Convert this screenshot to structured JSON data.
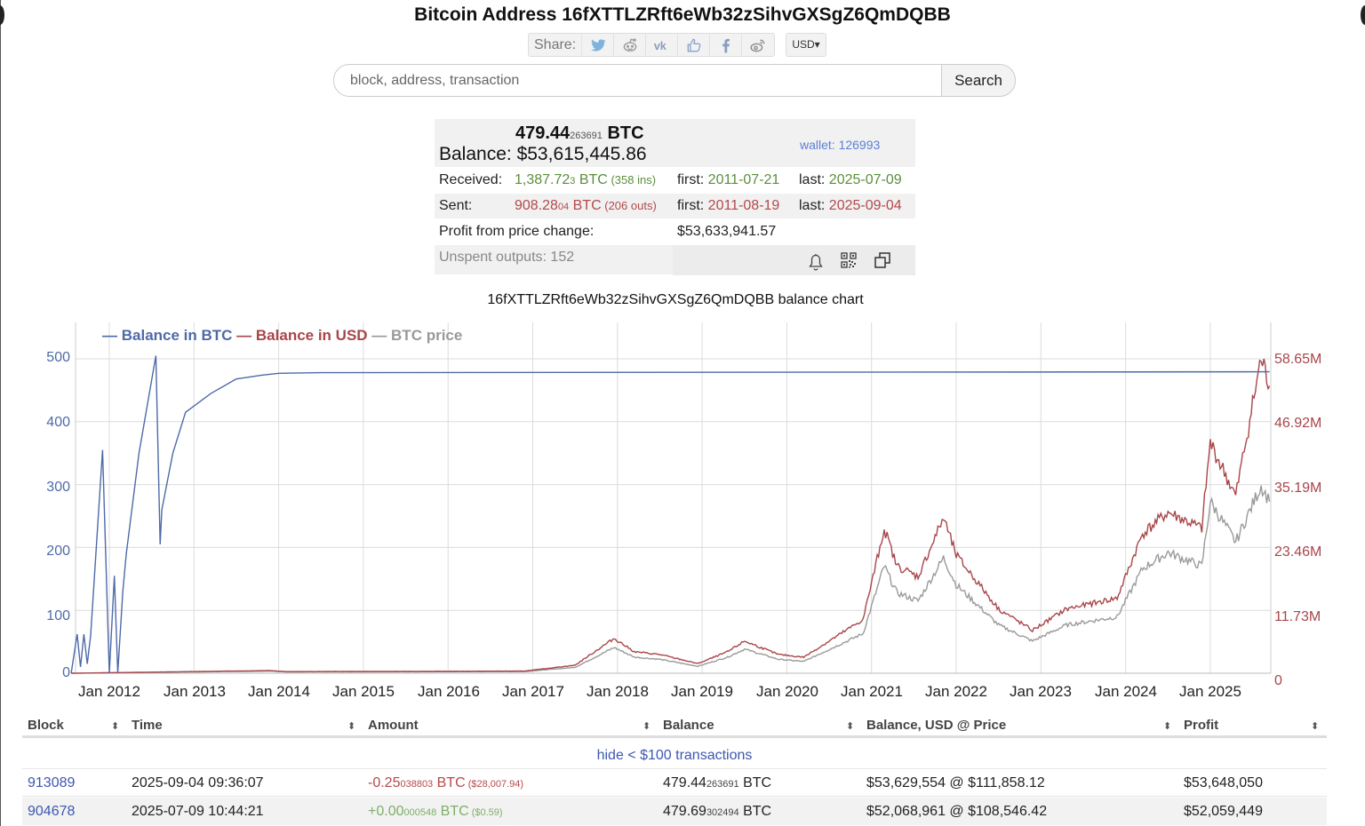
{
  "header": {
    "title": "Bitcoin Address 16fXTTLZRft6eWb32zSihvGXSgZ6QmDQBB",
    "share_label": "Share:",
    "share_icons": [
      "twitter-icon",
      "reddit-icon",
      "vk-icon",
      "like-icon",
      "facebook-icon",
      "weibo-icon"
    ],
    "currency": "USD▾"
  },
  "search": {
    "placeholder": "block, address, transaction",
    "button_label": "Search"
  },
  "summary": {
    "balance_btc_main": "479.44",
    "balance_btc_small": "263691",
    "balance_btc_unit": " BTC",
    "balance_label": "Balance:",
    "balance_usd": "$53,615,445.86",
    "wallet_link": "wallet: 126993",
    "received_label": "Received:",
    "received_main": "1,387.72",
    "received_small": "3",
    "received_unit": " BTC",
    "received_count": " (358 ins)",
    "received_first_label": "first:",
    "received_first": "2011-07-21",
    "received_last_label": "last:",
    "received_last": "2025-07-09",
    "sent_label": "Sent:",
    "sent_main": "908.28",
    "sent_small": "04",
    "sent_unit": " BTC",
    "sent_count": " (206 outs)",
    "sent_first_label": "first:",
    "sent_first": "2011-08-19",
    "sent_last_label": "last:",
    "sent_last": "2025-09-04",
    "profit_label": "Profit from price change:",
    "profit_value": "$53,633,941.57",
    "unspent_label": "Unspent outputs: 152",
    "action_icons": [
      "bell-icon",
      "qr-code-icon",
      "copy-icon"
    ]
  },
  "chart_data": {
    "type": "line",
    "title": "16fXTTLZRft6eWb32zSihvGXSgZ6QmDQBB balance chart",
    "legend": [
      "Balance in BTC",
      "Balance in USD",
      "BTC price"
    ],
    "legend_position": "top-left",
    "grid": true,
    "x_ticks": [
      "Jan 2012",
      "Jan 2013",
      "Jan 2014",
      "Jan 2015",
      "Jan 2016",
      "Jan 2017",
      "Jan 2018",
      "Jan 2019",
      "Jan 2020",
      "Jan 2021",
      "Jan 2022",
      "Jan 2023",
      "Jan 2024",
      "Jan 2025"
    ],
    "y_left": {
      "label": "Balance in BTC",
      "ticks": [
        "0",
        "100",
        "200",
        "300",
        "400",
        "500"
      ],
      "range": [
        0,
        500
      ]
    },
    "y_right": {
      "label": "Balance in USD",
      "ticks": [
        "0",
        "11.73M",
        "23.46M",
        "35.19M",
        "46.92M",
        "58.65M"
      ],
      "range": [
        0,
        58650000
      ]
    },
    "colors": {
      "btc": "#4e6aa8",
      "usd": "#a8464a",
      "price": "#9a9a9a"
    },
    "series": [
      {
        "name": "Balance in BTC",
        "axis": "left",
        "x": [
          2011.55,
          2011.62,
          2011.66,
          2011.7,
          2011.74,
          2011.78,
          2011.92,
          2012.0,
          2012.06,
          2012.1,
          2012.16,
          2012.2,
          2012.35,
          2012.55,
          2012.6,
          2012.62,
          2012.75,
          2012.9,
          2013.2,
          2013.5,
          2013.8,
          2014.0,
          2014.5,
          2025.7
        ],
        "values": [
          0,
          62,
          10,
          62,
          15,
          60,
          355,
          0,
          155,
          0,
          130,
          190,
          350,
          505,
          205,
          260,
          350,
          415,
          445,
          468,
          474,
          477,
          478,
          479.44
        ]
      },
      {
        "name": "Balance in USD",
        "axis": "right",
        "x": [
          2011.55,
          2013.9,
          2014.1,
          2016.9,
          2017.5,
          2017.96,
          2018.2,
          2018.5,
          2018.95,
          2019.3,
          2019.5,
          2019.9,
          2020.2,
          2020.9,
          2021.15,
          2021.3,
          2021.55,
          2021.85,
          2022.0,
          2022.5,
          2022.9,
          2023.3,
          2023.9,
          2024.2,
          2024.5,
          2024.9,
          2025.0,
          2025.3,
          2025.6,
          2025.7
        ],
        "values": [
          0,
          500000,
          300000,
          400000,
          1500000,
          6500000,
          4000000,
          3500000,
          1800000,
          4000000,
          6000000,
          3500000,
          3000000,
          10000000,
          27000000,
          20000000,
          18000000,
          29000000,
          22000000,
          12000000,
          8000000,
          12000000,
          14000000,
          26000000,
          30000000,
          27000000,
          43000000,
          33000000,
          58650000,
          53600000
        ]
      },
      {
        "name": "BTC price",
        "axis": "right",
        "x": [
          2011.55,
          2013.9,
          2014.1,
          2016.9,
          2017.5,
          2017.96,
          2018.2,
          2018.5,
          2018.95,
          2019.3,
          2019.5,
          2019.9,
          2020.2,
          2020.9,
          2021.15,
          2021.3,
          2021.55,
          2021.85,
          2022.0,
          2022.5,
          2022.9,
          2023.3,
          2023.9,
          2024.2,
          2024.5,
          2024.9,
          2025.0,
          2025.3,
          2025.6,
          2025.7
        ],
        "values": [
          0,
          400000,
          250000,
          300000,
          1100000,
          4800000,
          3000000,
          2600000,
          1300000,
          3000000,
          4500000,
          2600000,
          2200000,
          7400000,
          20000000,
          15000000,
          13500000,
          21500000,
          16500000,
          9000000,
          6000000,
          9000000,
          10500000,
          19500000,
          22500000,
          20000000,
          32000000,
          24500000,
          35000000,
          32000000
        ]
      }
    ]
  },
  "table": {
    "columns": [
      "Block",
      "Time",
      "Amount",
      "Balance",
      "Balance, USD @ Price",
      "Profit"
    ],
    "filter_link": "hide < $100 transactions",
    "rows": [
      {
        "block": "913089",
        "time": "2025-09-04 09:36:07",
        "amount_main": "-0.25",
        "amount_small": "038803",
        "amount_unit": " BTC",
        "amount_usd": " ($28,007.94)",
        "amount_sign": "negative",
        "balance_main": "479.44",
        "balance_small": "263691",
        "balance_unit": " BTC",
        "balance_usd": "$53,629,554 @ $111,858.12",
        "profit": "$53,648,050"
      },
      {
        "block": "904678",
        "time": "2025-07-09 10:44:21",
        "amount_main": "+0.00",
        "amount_small": "000548",
        "amount_unit": " BTC",
        "amount_usd": " ($0.59)",
        "amount_sign": "positive",
        "balance_main": "479.69",
        "balance_small": "302494",
        "balance_unit": " BTC",
        "balance_usd": "$52,068,961 @ $108,546.42",
        "profit": "$52,059,449"
      }
    ]
  }
}
